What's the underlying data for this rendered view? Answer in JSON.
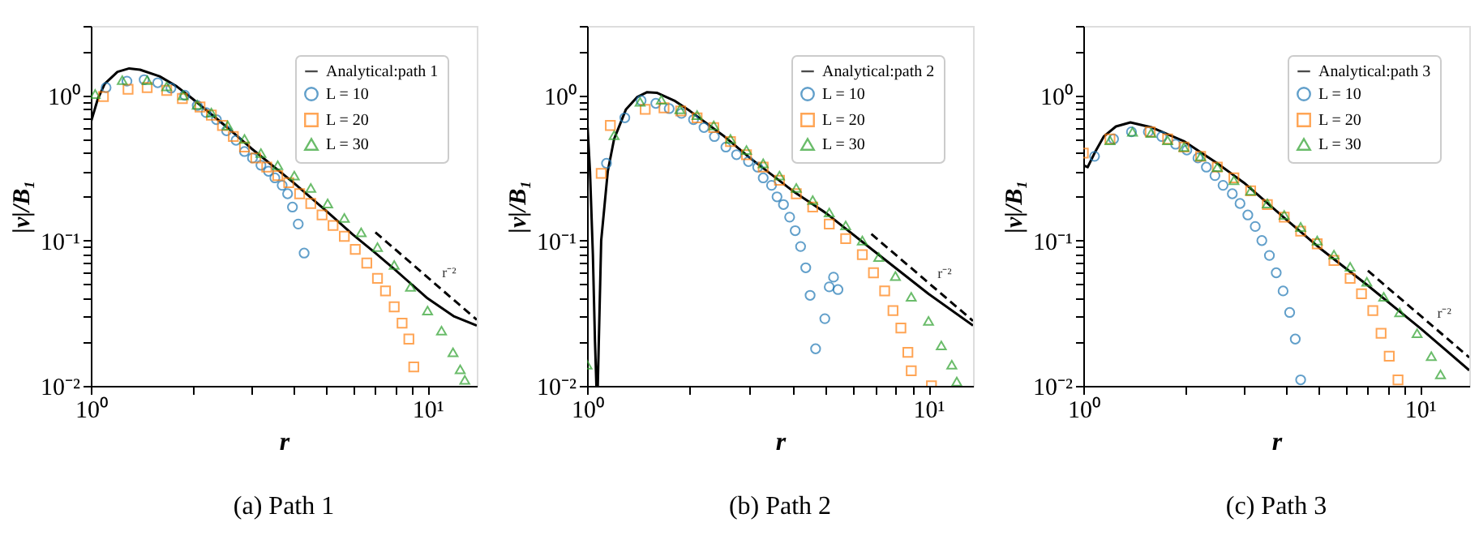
{
  "chart_data": [
    {
      "type": "line",
      "title": "(a) Path 1",
      "xlabel": "r",
      "ylabel": "|v|/B₁",
      "log": "xy",
      "grid": false,
      "legend": "top right",
      "xlim": [
        1,
        14
      ],
      "ylim": [
        0.01,
        3
      ],
      "xticks": [
        {
          "value": 1,
          "label": "10⁰"
        },
        {
          "value": 2,
          "label": null
        },
        {
          "value": 3,
          "label": null
        },
        {
          "value": 4,
          "label": null
        },
        {
          "value": 5,
          "label": null
        },
        {
          "value": 6,
          "label": null
        },
        {
          "value": 7,
          "label": null
        },
        {
          "value": 8,
          "label": null
        },
        {
          "value": 9,
          "label": null
        },
        {
          "value": 10,
          "label": "10¹"
        }
      ],
      "yticks": [
        {
          "value": 0.01,
          "label": "10⁻²"
        },
        {
          "value": 0.02,
          "label": null
        },
        {
          "value": 0.03,
          "label": null
        },
        {
          "value": 0.04,
          "label": null
        },
        {
          "value": 0.05,
          "label": null
        },
        {
          "value": 0.06,
          "label": null
        },
        {
          "value": 0.07,
          "label": null
        },
        {
          "value": 0.08,
          "label": null
        },
        {
          "value": 0.09,
          "label": null
        },
        {
          "value": 0.1,
          "label": "10⁻¹"
        },
        {
          "value": 0.2,
          "label": null
        },
        {
          "value": 0.3,
          "label": null
        },
        {
          "value": 0.4,
          "label": null
        },
        {
          "value": 0.5,
          "label": null
        },
        {
          "value": 0.6,
          "label": null
        },
        {
          "value": 0.7,
          "label": null
        },
        {
          "value": 0.8,
          "label": null
        },
        {
          "value": 0.9,
          "label": null
        },
        {
          "value": 1,
          "label": "10⁰"
        },
        {
          "value": 2,
          "label": null
        },
        {
          "value": 3,
          "label": null
        }
      ],
      "annotations": [
        {
          "text": "r⁻²",
          "x": 10.8,
          "y": 0.048
        }
      ],
      "series": [
        {
          "name": "Analytical:path 1",
          "line_style": "solid",
          "color": "#000000",
          "x": [
            1,
            1.05,
            1.1,
            1.2,
            1.3,
            1.4,
            1.6,
            1.8,
            2,
            2.5,
            3,
            4,
            5,
            6,
            7,
            8,
            10,
            12,
            14
          ],
          "values": [
            0.65,
            0.95,
            1.2,
            1.45,
            1.53,
            1.5,
            1.35,
            1.15,
            0.95,
            0.62,
            0.43,
            0.25,
            0.16,
            0.11,
            0.082,
            0.063,
            0.04,
            0.03,
            0.026
          ]
        },
        {
          "name": "L = 10",
          "type": "scatter",
          "marker": "circle",
          "color": "#1f77b4",
          "x": [
            1.11,
            1.28,
            1.44,
            1.58,
            1.73,
            1.9,
            2.07,
            2.2,
            2.36,
            2.53,
            2.7,
            2.86,
            3.02,
            3.2,
            3.37,
            3.52,
            3.7,
            3.84,
            3.97,
            4.13,
            4.3
          ],
          "values": [
            1.13,
            1.25,
            1.28,
            1.22,
            1.12,
            1.0,
            0.85,
            0.76,
            0.68,
            0.57,
            0.49,
            0.41,
            0.37,
            0.33,
            0.3,
            0.27,
            0.24,
            0.21,
            0.17,
            0.13,
            0.082
          ]
        },
        {
          "name": "L = 20",
          "type": "scatter",
          "marker": "square",
          "color": "#ff7f0e",
          "x": [
            1.09,
            1.29,
            1.47,
            1.68,
            1.87,
            2.11,
            2.28,
            2.46,
            2.65,
            2.86,
            3.09,
            3.33,
            3.59,
            3.87,
            4.17,
            4.5,
            4.86,
            5.24,
            5.66,
            6.1,
            6.6,
            7.1,
            7.5,
            7.96,
            8.4,
            8.8,
            9.1
          ],
          "values": [
            0.98,
            1.1,
            1.13,
            1.08,
            0.95,
            0.83,
            0.73,
            0.62,
            0.52,
            0.44,
            0.37,
            0.32,
            0.28,
            0.25,
            0.21,
            0.18,
            0.15,
            0.127,
            0.107,
            0.087,
            0.07,
            0.055,
            0.045,
            0.035,
            0.027,
            0.021,
            0.0135
          ]
        },
        {
          "name": "L = 30",
          "type": "scatter",
          "marker": "triangle",
          "color": "#2ca02c",
          "x": [
            1.03,
            1.24,
            1.47,
            1.68,
            1.88,
            2.07,
            2.28,
            2.55,
            2.86,
            3.2,
            3.59,
            4.02,
            4.5,
            5.05,
            5.66,
            6.35,
            7.1,
            7.96,
            8.9,
            10.0,
            11.0,
            11.9,
            12.5,
            12.9
          ],
          "values": [
            1.02,
            1.27,
            1.27,
            1.15,
            1.0,
            0.86,
            0.76,
            0.62,
            0.5,
            0.4,
            0.33,
            0.28,
            0.23,
            0.18,
            0.143,
            0.114,
            0.09,
            0.068,
            0.048,
            0.033,
            0.024,
            0.017,
            0.013,
            0.011
          ]
        },
        {
          "type": "line",
          "line_style": "dashed",
          "color": "#000000",
          "x": [
            7,
            14
          ],
          "values": [
            0.114,
            0.0285
          ]
        }
      ]
    },
    {
      "type": "line",
      "title": "(b) Path 2",
      "xlabel": "r",
      "ylabel": "|v|/B₁",
      "log": "xy",
      "grid": false,
      "legend": "top right",
      "xlim": [
        1,
        13.5
      ],
      "ylim": [
        0.01,
        3
      ],
      "xticks": [
        {
          "value": 1,
          "label": "10⁰"
        },
        {
          "value": 2,
          "label": null
        },
        {
          "value": 3,
          "label": null
        },
        {
          "value": 4,
          "label": null
        },
        {
          "value": 5,
          "label": null
        },
        {
          "value": 6,
          "label": null
        },
        {
          "value": 7,
          "label": null
        },
        {
          "value": 8,
          "label": null
        },
        {
          "value": 9,
          "label": null
        },
        {
          "value": 10,
          "label": "10¹"
        }
      ],
      "yticks": [
        {
          "value": 0.01,
          "label": "10⁻²"
        },
        {
          "value": 0.02,
          "label": null
        },
        {
          "value": 0.03,
          "label": null
        },
        {
          "value": 0.04,
          "label": null
        },
        {
          "value": 0.05,
          "label": null
        },
        {
          "value": 0.06,
          "label": null
        },
        {
          "value": 0.07,
          "label": null
        },
        {
          "value": 0.08,
          "label": null
        },
        {
          "value": 0.09,
          "label": null
        },
        {
          "value": 0.1,
          "label": "10⁻¹"
        },
        {
          "value": 0.2,
          "label": null
        },
        {
          "value": 0.3,
          "label": null
        },
        {
          "value": 0.4,
          "label": null
        },
        {
          "value": 0.5,
          "label": null
        },
        {
          "value": 0.6,
          "label": null
        },
        {
          "value": 0.7,
          "label": null
        },
        {
          "value": 0.8,
          "label": null
        },
        {
          "value": 0.9,
          "label": null
        },
        {
          "value": 1,
          "label": "10⁰"
        },
        {
          "value": 2,
          "label": null
        },
        {
          "value": 3,
          "label": null
        }
      ],
      "annotations": [
        {
          "text": "r⁻²",
          "x": 10.4,
          "y": 0.0475
        }
      ],
      "series": [
        {
          "name": "Analytical:path 2",
          "line_style": "solid",
          "color": "#000000",
          "x": [
            1,
            1.02,
            1.04,
            1.055,
            1.065,
            1.075,
            1.1,
            1.15,
            1.2,
            1.3,
            1.4,
            1.5,
            1.6,
            1.8,
            2,
            2.5,
            3,
            4,
            5,
            7,
            10,
            13.5
          ],
          "values": [
            0.7,
            0.3,
            0.08,
            0.02,
            0.01,
            0.01,
            0.1,
            0.3,
            0.5,
            0.8,
            0.97,
            1.05,
            1.04,
            0.92,
            0.78,
            0.53,
            0.37,
            0.22,
            0.155,
            0.083,
            0.043,
            0.026
          ]
        },
        {
          "name": "L = 10",
          "type": "scatter",
          "marker": "circle",
          "color": "#1f77b4",
          "x": [
            1.14,
            1.29,
            1.44,
            1.59,
            1.74,
            1.89,
            2.05,
            2.2,
            2.36,
            2.55,
            2.74,
            2.97,
            3.16,
            3.28,
            3.47,
            3.6,
            3.76,
            3.92,
            4.07,
            4.22,
            4.37,
            4.5,
            4.67,
            4.97,
            5.12,
            5.27,
            5.43
          ],
          "values": [
            0.34,
            0.7,
            0.92,
            0.88,
            0.81,
            0.75,
            0.68,
            0.6,
            0.52,
            0.44,
            0.39,
            0.35,
            0.32,
            0.27,
            0.24,
            0.2,
            0.177,
            0.145,
            0.117,
            0.091,
            0.065,
            0.042,
            0.018,
            0.029,
            0.048,
            0.056,
            0.046
          ]
        },
        {
          "name": "L = 20",
          "type": "scatter",
          "marker": "square",
          "color": "#ff7f0e",
          "x": [
            1.1,
            1.17,
            1.48,
            1.68,
            1.88,
            2.1,
            2.35,
            2.63,
            2.93,
            3.28,
            3.66,
            4.1,
            4.58,
            5.12,
            5.72,
            6.4,
            6.9,
            7.44,
            7.87,
            8.3,
            8.7,
            8.9,
            10.2
          ],
          "values": [
            0.29,
            0.62,
            0.8,
            0.82,
            0.78,
            0.7,
            0.6,
            0.48,
            0.39,
            0.32,
            0.26,
            0.21,
            0.17,
            0.13,
            0.103,
            0.08,
            0.06,
            0.045,
            0.033,
            0.025,
            0.017,
            0.0127,
            0.01
          ]
        },
        {
          "name": "L = 30",
          "type": "scatter",
          "marker": "triangle",
          "color": "#2ca02c",
          "x": [
            1.0,
            1.2,
            1.43,
            1.65,
            1.87,
            2.1,
            2.35,
            2.63,
            2.93,
            3.28,
            3.66,
            4.1,
            4.58,
            5.12,
            5.72,
            6.4,
            7.15,
            8.0,
            8.9,
            10.0,
            10.9,
            11.7,
            12.1
          ],
          "values": [
            0.014,
            0.53,
            0.9,
            0.93,
            0.8,
            0.73,
            0.62,
            0.5,
            0.42,
            0.34,
            0.28,
            0.23,
            0.19,
            0.156,
            0.127,
            0.1,
            0.077,
            0.057,
            0.041,
            0.028,
            0.019,
            0.014,
            0.0107
          ]
        },
        {
          "type": "line",
          "line_style": "dashed",
          "color": "#000000",
          "x": [
            6.8,
            13.5
          ],
          "values": [
            0.111,
            0.028
          ]
        }
      ]
    },
    {
      "type": "line",
      "title": "(c) Path 3",
      "xlabel": "r",
      "ylabel": "|v|/B₁",
      "log": "xy",
      "grid": false,
      "legend": "top right",
      "xlim": [
        1,
        14
      ],
      "ylim": [
        0.01,
        3
      ],
      "xticks": [
        {
          "value": 1,
          "label": "10⁰"
        },
        {
          "value": 2,
          "label": null
        },
        {
          "value": 3,
          "label": null
        },
        {
          "value": 4,
          "label": null
        },
        {
          "value": 5,
          "label": null
        },
        {
          "value": 6,
          "label": null
        },
        {
          "value": 7,
          "label": null
        },
        {
          "value": 8,
          "label": null
        },
        {
          "value": 9,
          "label": null
        },
        {
          "value": 10,
          "label": "10¹"
        }
      ],
      "yticks": [
        {
          "value": 0.01,
          "label": "10⁻²"
        },
        {
          "value": 0.02,
          "label": null
        },
        {
          "value": 0.03,
          "label": null
        },
        {
          "value": 0.04,
          "label": null
        },
        {
          "value": 0.05,
          "label": null
        },
        {
          "value": 0.06,
          "label": null
        },
        {
          "value": 0.07,
          "label": null
        },
        {
          "value": 0.08,
          "label": null
        },
        {
          "value": 0.09,
          "label": null
        },
        {
          "value": 0.1,
          "label": "10⁻¹"
        },
        {
          "value": 0.2,
          "label": null
        },
        {
          "value": 0.3,
          "label": null
        },
        {
          "value": 0.4,
          "label": null
        },
        {
          "value": 0.5,
          "label": null
        },
        {
          "value": 0.6,
          "label": null
        },
        {
          "value": 0.7,
          "label": null
        },
        {
          "value": 0.8,
          "label": null
        },
        {
          "value": 0.9,
          "label": null
        },
        {
          "value": 1,
          "label": "10⁰"
        },
        {
          "value": 2,
          "label": null
        },
        {
          "value": 3,
          "label": null
        }
      ],
      "annotations": [
        {
          "text": "r⁻²",
          "x": 11.0,
          "y": 0.0251
        }
      ],
      "series": [
        {
          "name": "Analytical:path 3",
          "line_style": "solid",
          "color": "#000000",
          "x": [
            1,
            1.03,
            1.08,
            1.15,
            1.25,
            1.38,
            1.6,
            2,
            2.5,
            3,
            4,
            5,
            7,
            10,
            14
          ],
          "values": [
            0.33,
            0.32,
            0.4,
            0.52,
            0.61,
            0.65,
            0.6,
            0.48,
            0.34,
            0.25,
            0.14,
            0.09,
            0.049,
            0.025,
            0.0128
          ]
        },
        {
          "name": "L = 10",
          "type": "scatter",
          "marker": "circle",
          "color": "#1f77b4",
          "x": [
            1.08,
            1.23,
            1.39,
            1.56,
            1.71,
            1.88,
            2.03,
            2.19,
            2.32,
            2.46,
            2.6,
            2.77,
            2.92,
            3.08,
            3.24,
            3.39,
            3.57,
            3.74,
            3.92,
            4.1,
            4.26,
            4.42
          ],
          "values": [
            0.38,
            0.5,
            0.56,
            0.56,
            0.52,
            0.46,
            0.42,
            0.37,
            0.32,
            0.28,
            0.24,
            0.21,
            0.18,
            0.15,
            0.125,
            0.1,
            0.079,
            0.06,
            0.045,
            0.032,
            0.021,
            0.011
          ]
        },
        {
          "name": "L = 20",
          "type": "scatter",
          "marker": "square",
          "color": "#ff7f0e",
          "x": [
            1.0,
            1.2,
            1.58,
            1.78,
            1.99,
            2.23,
            2.5,
            2.8,
            3.14,
            3.52,
            3.95,
            4.42,
            4.95,
            5.55,
            6.2,
            6.7,
            7.24,
            7.66,
            8.1,
            8.6
          ],
          "values": [
            0.4,
            0.5,
            0.56,
            0.5,
            0.44,
            0.38,
            0.32,
            0.27,
            0.22,
            0.177,
            0.145,
            0.116,
            0.095,
            0.073,
            0.055,
            0.043,
            0.033,
            0.023,
            0.016,
            0.011
          ]
        },
        {
          "name": "L = 30",
          "type": "scatter",
          "marker": "triangle",
          "color": "#2ca02c",
          "x": [
            1.2,
            1.4,
            1.59,
            1.78,
            1.99,
            2.23,
            2.5,
            2.8,
            3.14,
            3.52,
            3.95,
            4.42,
            4.95,
            5.55,
            6.2,
            6.95,
            7.8,
            8.7,
            9.8,
            10.8,
            11.5
          ],
          "values": [
            0.49,
            0.56,
            0.55,
            0.49,
            0.44,
            0.38,
            0.32,
            0.26,
            0.22,
            0.18,
            0.15,
            0.124,
            0.1,
            0.08,
            0.066,
            0.052,
            0.041,
            0.032,
            0.023,
            0.016,
            0.012
          ]
        },
        {
          "type": "line",
          "line_style": "dashed",
          "color": "#000000",
          "x": [
            7,
            14
          ],
          "values": [
            0.062,
            0.0157
          ]
        }
      ]
    }
  ]
}
